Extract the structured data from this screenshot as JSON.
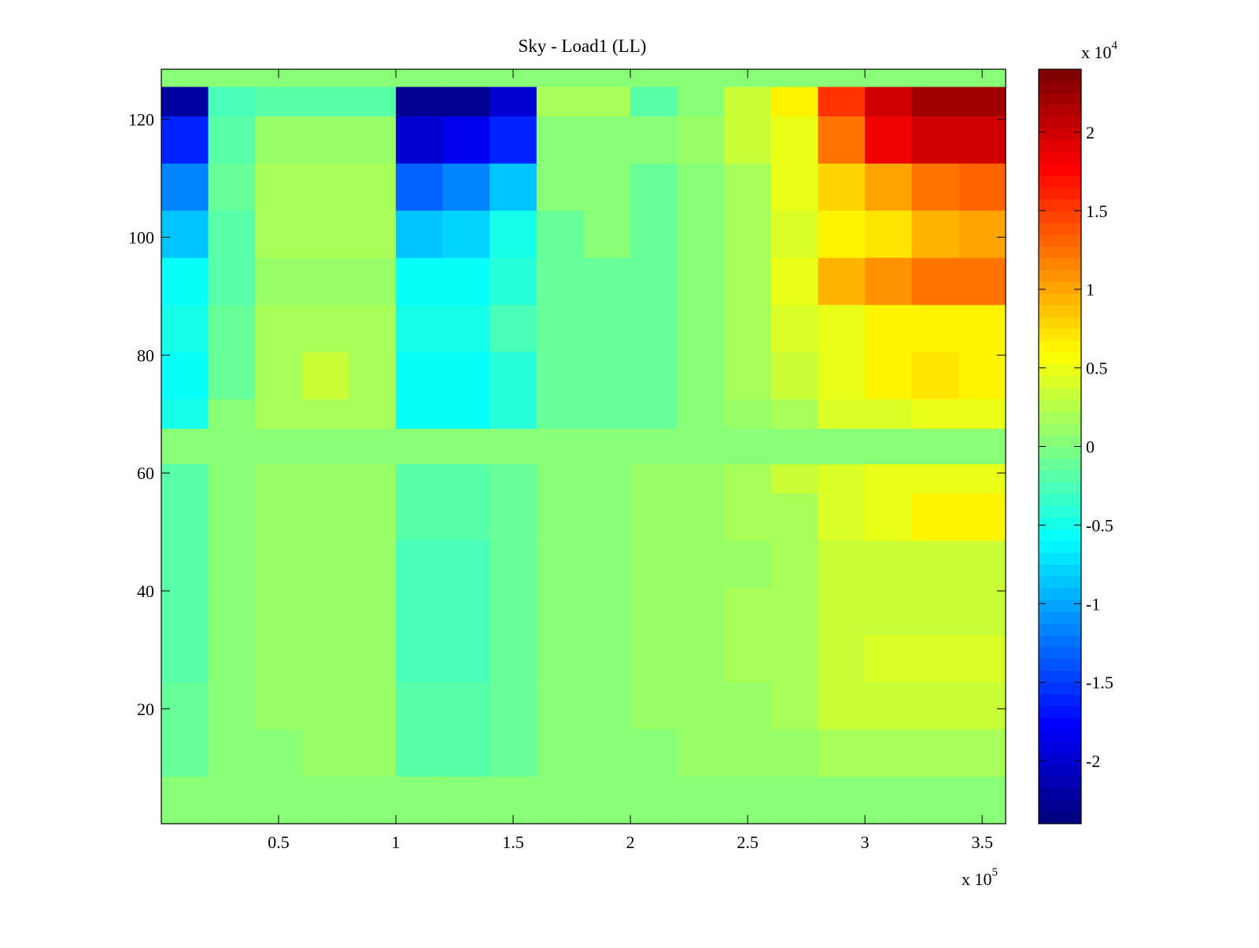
{
  "chart_data": {
    "type": "heatmap",
    "title": "Sky - Load1 (LL)",
    "xlabel": "",
    "ylabel": "",
    "x_multiplier_label": "x 10",
    "x_multiplier_exp": "5",
    "colorbar_multiplier_label": "x 10",
    "colorbar_multiplier_exp": "4",
    "xlim": [
      0,
      3.6
    ],
    "ylim": [
      0.5,
      128.5
    ],
    "clim": [
      -2.4,
      2.4
    ],
    "colormap": "jet",
    "colormap_levels": 64,
    "x_ticks": [
      0.5,
      1,
      1.5,
      2,
      2.5,
      3,
      3.5
    ],
    "x_tick_labels": [
      "0.5",
      "1",
      "1.5",
      "2",
      "2.5",
      "3",
      "3.5"
    ],
    "y_ticks": [
      20,
      40,
      60,
      80,
      100,
      120
    ],
    "y_tick_labels": [
      "20",
      "40",
      "60",
      "80",
      "100",
      "120"
    ],
    "colorbar_ticks": [
      -2,
      -1.5,
      -1,
      -0.5,
      0,
      0.5,
      1,
      1.5,
      2
    ],
    "colorbar_tick_labels": [
      "-2",
      "-1.5",
      "-1",
      "-0.5",
      "0",
      "0.5",
      "1",
      "1.5",
      "2"
    ],
    "x_bin_edges": [
      0,
      0.2,
      0.4,
      0.6,
      0.8,
      1.0,
      1.2,
      1.4,
      1.6,
      1.8,
      2.0,
      2.2,
      2.4,
      2.6,
      2.8,
      3.0,
      3.2,
      3.4,
      3.6
    ],
    "y_bin_edges_top_down": [
      128.5,
      120.5,
      112.5,
      104.5,
      96.5,
      88.5,
      80.5,
      72.5,
      64.5,
      56.5,
      48.5,
      40.5,
      32.5,
      24.5,
      16.5,
      8.5,
      0.5
    ],
    "values_top_down": [
      [
        -2.2,
        -0.3,
        -0.2,
        -0.2,
        -0.2,
        -2.3,
        -2.3,
        -2.0,
        0.2,
        0.2,
        -0.2,
        0.0,
        0.3,
        0.6,
        1.5,
        2.0,
        2.2,
        2.2
      ],
      [
        -1.6,
        -0.2,
        0.1,
        0.1,
        0.1,
        -2.0,
        -1.8,
        -1.6,
        0.0,
        0.0,
        0.0,
        0.1,
        0.3,
        0.5,
        1.2,
        1.8,
        2.0,
        2.0
      ],
      [
        -1.2,
        -0.1,
        0.2,
        0.2,
        0.2,
        -1.3,
        -1.2,
        -0.9,
        0.0,
        0.0,
        -0.1,
        0.0,
        0.2,
        0.5,
        0.8,
        1.0,
        1.2,
        1.3
      ],
      [
        -0.9,
        -0.2,
        0.2,
        0.2,
        0.2,
        -0.9,
        -0.8,
        -0.5,
        -0.1,
        0.0,
        -0.1,
        0.0,
        0.2,
        0.4,
        0.6,
        0.7,
        0.9,
        1.0
      ],
      [
        -0.6,
        -0.2,
        0.1,
        0.1,
        0.1,
        -0.6,
        -0.6,
        -0.4,
        -0.1,
        -0.1,
        -0.1,
        0.0,
        0.2,
        0.5,
        0.9,
        1.1,
        1.2,
        1.2
      ],
      [
        -0.5,
        -0.1,
        0.2,
        0.2,
        0.2,
        -0.5,
        -0.5,
        -0.3,
        -0.1,
        -0.1,
        -0.1,
        0.0,
        0.2,
        0.4,
        0.5,
        0.6,
        0.6,
        0.6
      ],
      [
        -0.6,
        -0.1,
        0.2,
        0.3,
        0.2,
        -0.6,
        -0.6,
        -0.4,
        -0.1,
        -0.1,
        -0.1,
        0.0,
        0.2,
        0.3,
        0.5,
        0.6,
        0.7,
        0.6
      ],
      [
        -0.5,
        0.0,
        0.2,
        0.2,
        0.2,
        -0.6,
        -0.6,
        -0.4,
        -0.1,
        -0.1,
        -0.1,
        0.0,
        0.1,
        0.2,
        0.4,
        0.4,
        0.5,
        0.5
      ],
      [
        -0.2,
        0.0,
        0.1,
        0.1,
        0.1,
        -0.2,
        -0.2,
        -0.1,
        0.0,
        0.0,
        0.1,
        0.1,
        0.2,
        0.3,
        0.4,
        0.5,
        0.5,
        0.5
      ],
      [
        -0.2,
        0.0,
        0.1,
        0.1,
        0.1,
        -0.2,
        -0.2,
        -0.1,
        0.0,
        0.0,
        0.1,
        0.1,
        0.2,
        0.2,
        0.4,
        0.5,
        0.6,
        0.6
      ],
      [
        -0.2,
        0.0,
        0.1,
        0.1,
        0.1,
        -0.3,
        -0.3,
        -0.1,
        0.0,
        0.0,
        0.1,
        0.1,
        0.1,
        0.2,
        0.3,
        0.3,
        0.3,
        0.3
      ],
      [
        -0.2,
        0.0,
        0.1,
        0.1,
        0.1,
        -0.3,
        -0.3,
        -0.1,
        0.0,
        0.0,
        0.1,
        0.1,
        0.2,
        0.2,
        0.3,
        0.3,
        0.3,
        0.3
      ],
      [
        -0.2,
        0.0,
        0.1,
        0.1,
        0.1,
        -0.3,
        -0.3,
        -0.1,
        0.0,
        0.0,
        0.1,
        0.1,
        0.2,
        0.2,
        0.3,
        0.4,
        0.4,
        0.4
      ],
      [
        -0.1,
        0.0,
        0.1,
        0.1,
        0.1,
        -0.2,
        -0.2,
        -0.1,
        0.0,
        0.0,
        0.1,
        0.1,
        0.1,
        0.2,
        0.3,
        0.3,
        0.3,
        0.3
      ],
      [
        -0.1,
        0.0,
        0.0,
        0.1,
        0.1,
        -0.2,
        -0.2,
        -0.1,
        0.0,
        0.0,
        0.0,
        0.1,
        0.1,
        0.1,
        0.2,
        0.2,
        0.2,
        0.2
      ],
      [
        0,
        0,
        0,
        0,
        0,
        0,
        0,
        0,
        0,
        0,
        0,
        0,
        0,
        0,
        0,
        0,
        0,
        0
      ]
    ],
    "flat_zero_bands_y": [
      [
        125.5,
        128.5
      ],
      [
        61.5,
        67.5
      ],
      [
        0.5,
        6.5
      ]
    ]
  }
}
